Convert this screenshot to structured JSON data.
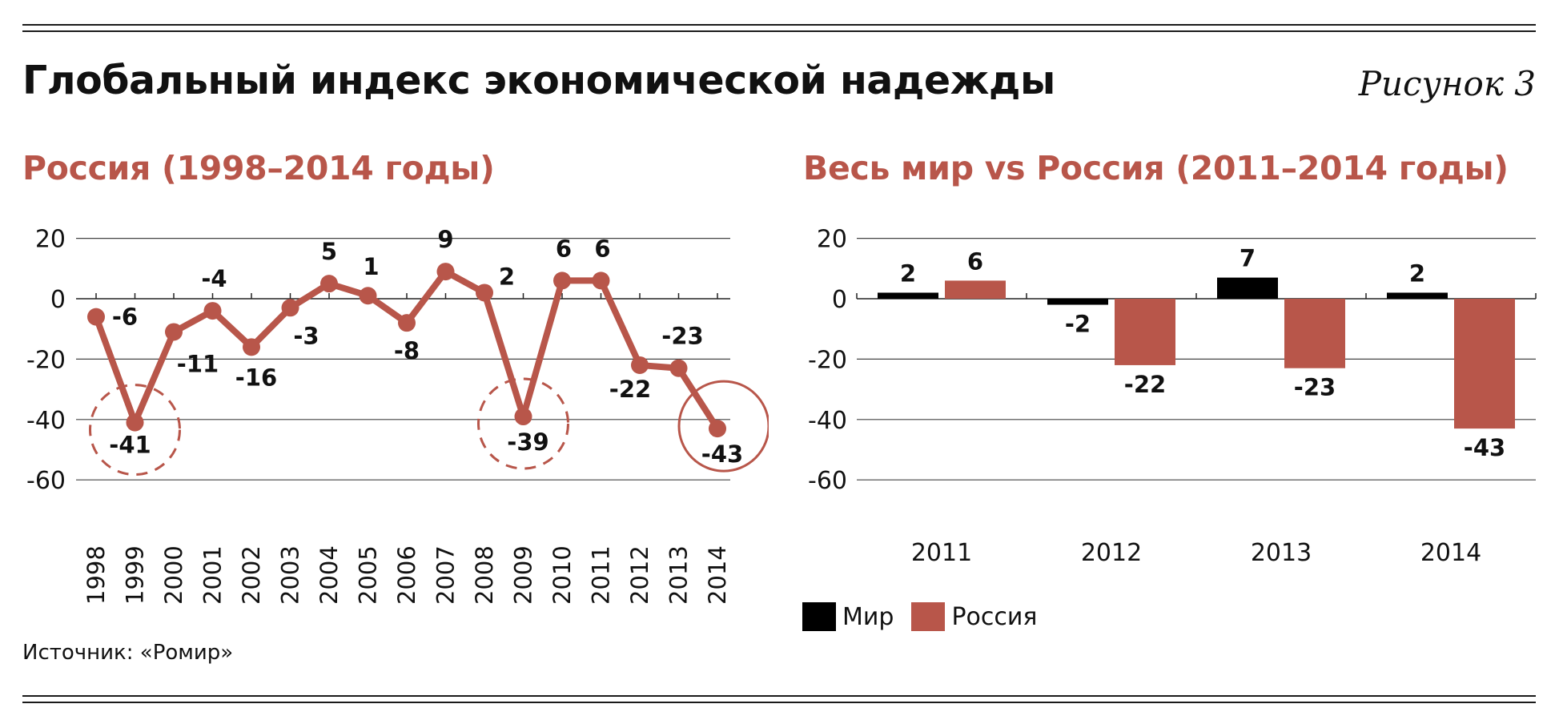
{
  "header": {
    "title": "Глобальный индекс экономической надежды",
    "figure_label": "Рисунок 3"
  },
  "colors": {
    "russia": "#b8564a",
    "world": "#000000",
    "axis": "#333333",
    "text": "#111111"
  },
  "source": "Источник: «Ромир»",
  "chart_data": [
    {
      "type": "line",
      "title": "Россия (1998–2014 годы)",
      "x": [
        "1998",
        "1999",
        "2000",
        "2001",
        "2002",
        "2003",
        "2004",
        "2005",
        "2006",
        "2007",
        "2008",
        "2009",
        "2010",
        "2011",
        "2012",
        "2013",
        "2014"
      ],
      "y": [
        -6,
        -41,
        -11,
        -4,
        -16,
        -3,
        5,
        1,
        -8,
        9,
        2,
        -39,
        6,
        6,
        -22,
        -23,
        -43
      ],
      "data_labels": [
        "-6",
        "-41",
        "-11",
        "-4",
        "-16",
        "-3",
        "5",
        "1",
        "-8",
        "9",
        "2",
        "-39",
        "6",
        "6",
        "-22",
        "-23",
        "-43"
      ],
      "ylim": [
        -60,
        20
      ],
      "yticks": [
        "20",
        "0",
        "-20",
        "-40",
        "-60"
      ],
      "grid": true,
      "highlighted": [
        {
          "x": "1999",
          "style": "dashed-circle"
        },
        {
          "x": "2009",
          "style": "dashed-circle"
        },
        {
          "x": "2014",
          "style": "solid-circle"
        }
      ]
    },
    {
      "type": "bar",
      "title": "Весь мир vs Россия (2011–2014 годы)",
      "categories": [
        "2011",
        "2012",
        "2013",
        "2014"
      ],
      "series": [
        {
          "name": "Мир",
          "values": [
            2,
            -2,
            7,
            2
          ],
          "labels": [
            "2",
            "-2",
            "7",
            "2"
          ],
          "color": "#000000"
        },
        {
          "name": "Россия",
          "values": [
            6,
            -22,
            -23,
            -43
          ],
          "labels": [
            "6",
            "-22",
            "-23",
            "-43"
          ],
          "color": "#b8564a"
        }
      ],
      "ylim": [
        -60,
        20
      ],
      "yticks": [
        "20",
        "0",
        "-20",
        "-40",
        "-60"
      ],
      "grid": true,
      "legend": "bottom-left"
    }
  ]
}
